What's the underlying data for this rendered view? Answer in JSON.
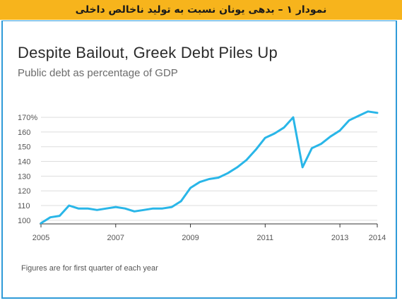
{
  "banner": {
    "text": "نمودار ۱ – بدهی یونان نسبت به تولید ناخالص داخلی",
    "color": "#f7b41c"
  },
  "chart_data": {
    "type": "line",
    "title": "Despite Bailout, Greek Debt Piles Up",
    "subtitle": "Public debt as percentage of GDP",
    "note": "Figures are for first quarter of each year",
    "xlabel": "",
    "ylabel": "",
    "xlim": [
      2005,
      2014
    ],
    "ylim": [
      98,
      176
    ],
    "y_ticks": [
      100,
      110,
      120,
      130,
      140,
      150,
      160,
      170
    ],
    "y_tick_labels": [
      "100",
      "110",
      "120",
      "130",
      "140",
      "150",
      "160",
      "170%"
    ],
    "x_ticks": [
      2005,
      2007,
      2009,
      2011,
      2013,
      2014
    ],
    "x_tick_labels": [
      "2005",
      "2007",
      "2009",
      "2011",
      "2013",
      "2014"
    ],
    "grid": true,
    "line_color": "#29b6e8",
    "series": [
      {
        "x": [
          2005.0,
          2005.25,
          2005.5,
          2005.75,
          2006.0,
          2006.25,
          2006.5,
          2006.75,
          2007.0,
          2007.25,
          2007.5,
          2007.75,
          2008.0,
          2008.25,
          2008.5,
          2008.75,
          2009.0,
          2009.25,
          2009.5,
          2009.75,
          2010.0,
          2010.25,
          2010.5,
          2010.75,
          2011.0,
          2011.25,
          2011.5,
          2011.75,
          2012.0,
          2012.25,
          2012.5,
          2012.75,
          2013.0,
          2013.25,
          2013.5,
          2013.75,
          2014.0
        ],
        "values": [
          98,
          102,
          103,
          110,
          108,
          108,
          107,
          108,
          109,
          108,
          106,
          107,
          108,
          108,
          109,
          113,
          122,
          126,
          128,
          129,
          132,
          136,
          141,
          148,
          156,
          159,
          163,
          170,
          136,
          149,
          152,
          157,
          161,
          168,
          171,
          174,
          173
        ]
      }
    ]
  }
}
